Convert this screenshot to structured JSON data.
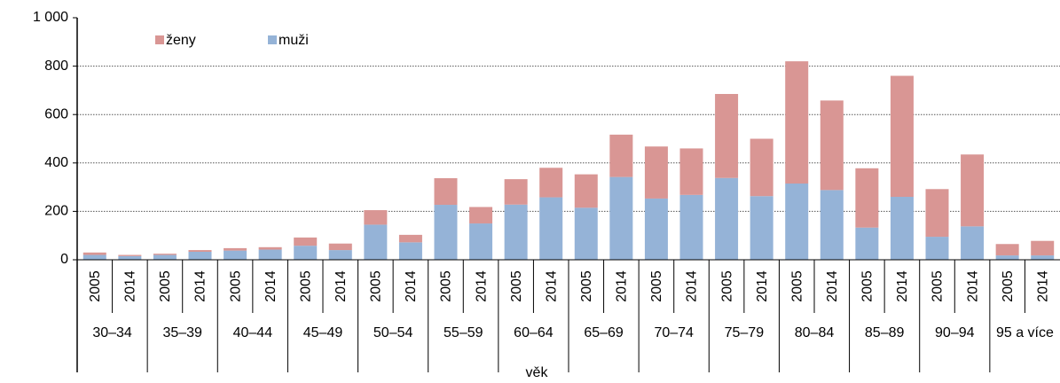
{
  "chart_data": {
    "type": "stacked_bar",
    "x_label": "věk",
    "groups": [
      "30–34",
      "35–39",
      "40–44",
      "45–49",
      "50–54",
      "55–59",
      "60–64",
      "65–69",
      "70–74",
      "75–79",
      "80–84",
      "85–89",
      "90–94",
      "95 a více"
    ],
    "categories": [
      "2005",
      "2014",
      "2005",
      "2014",
      "2005",
      "2014",
      "2005",
      "2014",
      "2005",
      "2014",
      "2005",
      "2014",
      "2005",
      "2014",
      "2005",
      "2014",
      "2005",
      "2014",
      "2005",
      "2014",
      "2005",
      "2014",
      "2005",
      "2014",
      "2005",
      "2014",
      "2005",
      "2014"
    ],
    "series": [
      {
        "name": "ženy",
        "color": "#d99694",
        "values": [
          10,
          5,
          5,
          7,
          10,
          10,
          34,
          27,
          60,
          31,
          110,
          68,
          105,
          122,
          138,
          175,
          215,
          192,
          347,
          237,
          505,
          370,
          245,
          500,
          197,
          297,
          47,
          60
        ]
      },
      {
        "name": "muži",
        "color": "#95b3d7",
        "values": [
          20,
          15,
          20,
          33,
          38,
          42,
          58,
          40,
          145,
          72,
          227,
          150,
          228,
          258,
          215,
          342,
          253,
          268,
          338,
          263,
          315,
          288,
          133,
          260,
          95,
          138,
          18,
          18
        ]
      }
    ],
    "ylim": [
      0,
      1000
    ],
    "yticks": [
      0,
      200,
      400,
      600,
      800,
      {
        "value": 1000,
        "label": "1 000"
      }
    ],
    "grid": true,
    "legend": "top-left"
  }
}
